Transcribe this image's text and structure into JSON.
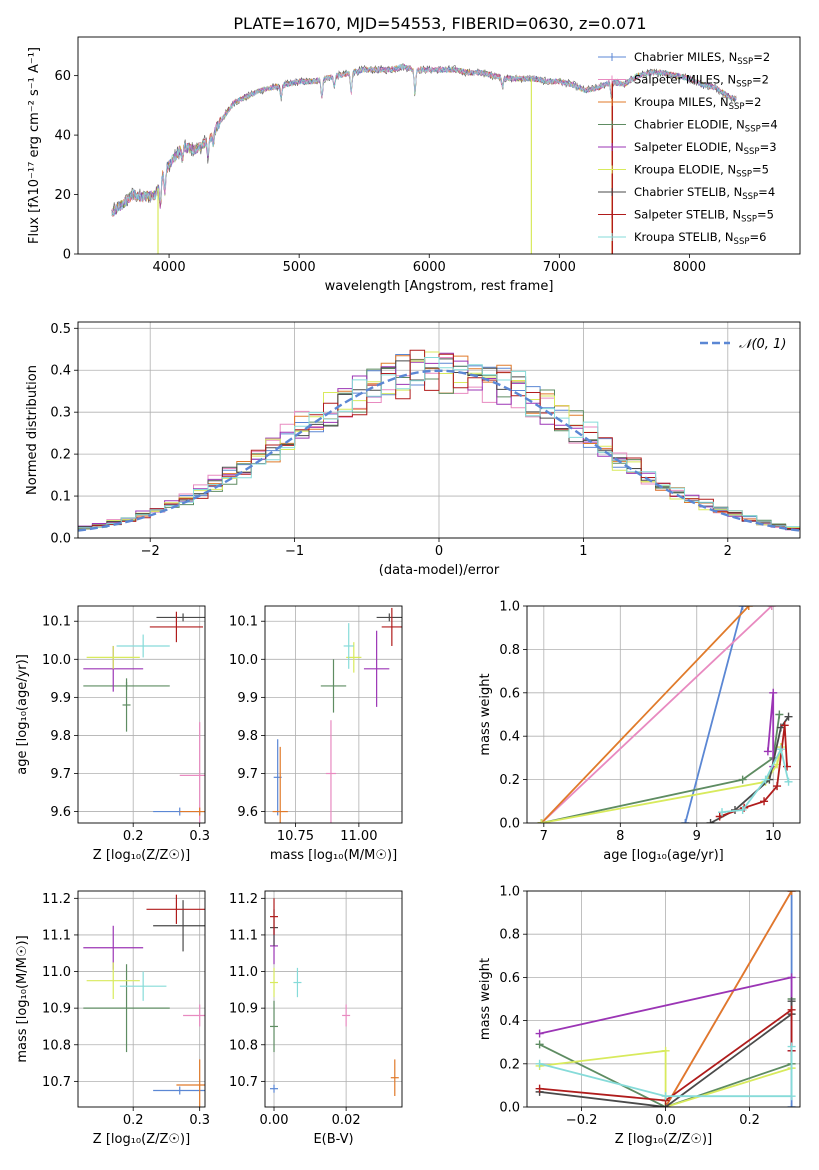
{
  "figure": {
    "title": "PLATE=1670, MJD=54553, FIBERID=0630, z=0.071",
    "colors": {
      "Chabrier MILES": "#5b87d4",
      "Salpeter MILES": "#e88ac0",
      "Kroupa MILES": "#e07a2a",
      "Chabrier ELODIE": "#5e8c62",
      "Salpeter ELODIE": "#9b35b5",
      "Kroupa ELODIE": "#d8ea5c",
      "Chabrier STELIB": "#4a4a4a",
      "Salpeter STELIB": "#b01c1c",
      "Kroupa STELIB": "#86dbd9"
    }
  },
  "chart_data": [
    {
      "type": "line",
      "id": "spectrum",
      "xlabel": "wavelength [Angstrom, rest frame]",
      "ylabel": "Flux [fλ10⁻¹⁷ erg cm⁻² s⁻¹ A⁻¹]",
      "xlim": [
        3300,
        8850
      ],
      "ylim": [
        0,
        73
      ],
      "xticks": [
        4000,
        5000,
        6000,
        7000,
        8000
      ],
      "yticks": [
        0,
        20,
        40,
        60
      ],
      "legend_position": "upper-right",
      "legend": [
        {
          "name": "Chabrier MILES",
          "nssp": "2"
        },
        {
          "name": "Salpeter MILES",
          "nssp": "2"
        },
        {
          "name": "Kroupa MILES",
          "nssp": "2"
        },
        {
          "name": "Chabrier ELODIE",
          "nssp": "4"
        },
        {
          "name": "Salpeter ELODIE",
          "nssp": "3"
        },
        {
          "name": "Kroupa ELODIE",
          "nssp": "5"
        },
        {
          "name": "Chabrier STELIB",
          "nssp": "4"
        },
        {
          "name": "Salpeter STELIB",
          "nssp": "5"
        },
        {
          "name": "Kroupa STELIB",
          "nssp": "6"
        }
      ],
      "continuum": [
        [
          3560,
          14
        ],
        [
          3650,
          17
        ],
        [
          3720,
          20
        ],
        [
          3800,
          19
        ],
        [
          3900,
          20
        ],
        [
          3950,
          27
        ],
        [
          4000,
          30
        ],
        [
          4100,
          36
        ],
        [
          4200,
          35
        ],
        [
          4300,
          38
        ],
        [
          4400,
          45
        ],
        [
          4500,
          51
        ],
        [
          4600,
          53
        ],
        [
          4700,
          55
        ],
        [
          4800,
          56
        ],
        [
          4900,
          57
        ],
        [
          5000,
          58
        ],
        [
          5100,
          58
        ],
        [
          5200,
          59
        ],
        [
          5300,
          60
        ],
        [
          5400,
          61
        ],
        [
          5500,
          62
        ],
        [
          5600,
          62
        ],
        [
          5700,
          62
        ],
        [
          5800,
          63
        ],
        [
          5900,
          62
        ],
        [
          6000,
          62
        ],
        [
          6100,
          62
        ],
        [
          6200,
          62
        ],
        [
          6300,
          61
        ],
        [
          6400,
          61
        ],
        [
          6500,
          60
        ],
        [
          6600,
          59
        ],
        [
          6700,
          59
        ],
        [
          6800,
          59
        ],
        [
          6900,
          58
        ],
        [
          7000,
          58
        ],
        [
          7100,
          57
        ],
        [
          7200,
          55
        ],
        [
          7300,
          56
        ],
        [
          7400,
          58
        ],
        [
          7500,
          57
        ],
        [
          7600,
          60
        ],
        [
          7700,
          61
        ],
        [
          7800,
          61
        ],
        [
          7900,
          60
        ],
        [
          8000,
          59
        ],
        [
          8100,
          57
        ],
        [
          8200,
          56
        ],
        [
          8300,
          53
        ],
        [
          8360,
          52
        ]
      ],
      "dips": [
        [
          3933,
          8
        ],
        [
          3968,
          7
        ],
        [
          4101,
          4
        ],
        [
          4300,
          5
        ],
        [
          4340,
          4
        ],
        [
          4861,
          4
        ],
        [
          5175,
          6
        ],
        [
          5270,
          3
        ],
        [
          5400,
          7
        ],
        [
          5890,
          8
        ],
        [
          6563,
          3
        ],
        [
          7400,
          5
        ]
      ]
    },
    {
      "type": "line",
      "id": "residuals",
      "xlabel": "(data-model)/error",
      "ylabel": "Normed distribution",
      "xlim": [
        -2.5,
        2.5
      ],
      "ylim": [
        0,
        0.515
      ],
      "xticks": [
        -2,
        -1,
        0,
        1,
        2
      ],
      "xtick_labels": [
        "−2",
        "−1",
        "0",
        "1",
        "2"
      ],
      "yticks": [
        0.0,
        0.1,
        0.2,
        0.3,
        0.4,
        0.5
      ],
      "ytick_labels": [
        "0.0",
        "0.1",
        "0.2",
        "0.3",
        "0.4",
        "0.5"
      ],
      "grid": true,
      "gaussian_label": "𝒩(0, 1)",
      "legend_position": "upper-right"
    },
    {
      "type": "scatter",
      "id": "age-vs-Z",
      "xlabel": "Z [log₁₀(Z/Z☉)]",
      "ylabel": "age  [log₁₀(age/yr)]",
      "xlim": [
        0.117,
        0.308
      ],
      "ylim": [
        9.57,
        10.14
      ],
      "xticks": [
        0.2,
        0.3
      ],
      "xtick_labels": [
        "0.2",
        "0.3"
      ],
      "yticks": [
        9.6,
        9.7,
        9.8,
        9.9,
        10.0,
        10.1
      ],
      "ytick_labels": [
        "9.6",
        "9.7",
        "9.8",
        "9.9",
        "10.0",
        "10.1"
      ],
      "grid": true,
      "points": [
        {
          "model": "Chabrier MILES",
          "x": 0.27,
          "y": 9.6,
          "xerr": 0.04,
          "yerr": 0.0
        },
        {
          "model": "Salpeter MILES",
          "x": 0.3,
          "y": 9.695,
          "xerr": 0.03,
          "yerr": 0.14
        },
        {
          "model": "Kroupa MILES",
          "x": 0.3,
          "y": 9.6,
          "xerr": 0.03,
          "yerr": 0.0
        },
        {
          "model": "Chabrier ELODIE",
          "x": 0.19,
          "y": 9.93,
          "xerr": 0.065,
          "yerr": 0.0
        },
        {
          "model": "Salpeter ELODIE",
          "x": 0.17,
          "y": 9.975,
          "xerr": 0.045,
          "yerr": 0.06
        },
        {
          "model": "Kroupa ELODIE",
          "x": 0.17,
          "y": 10.005,
          "xerr": 0.04,
          "yerr": 0.03
        },
        {
          "model": "Chabrier STELIB",
          "x": 0.275,
          "y": 10.11,
          "xerr": 0.04,
          "yerr": 0.0
        },
        {
          "model": "Chabrier ELODIE",
          "x": 0.19,
          "y": 9.88,
          "xerr": 0.0,
          "yerr": 0.07
        },
        {
          "model": "Salpeter STELIB",
          "x": 0.265,
          "y": 10.085,
          "xerr": 0.04,
          "yerr": 0.04
        },
        {
          "model": "Kroupa STELIB",
          "x": 0.215,
          "y": 10.035,
          "xerr": 0.04,
          "yerr": 0.03
        }
      ]
    },
    {
      "type": "scatter",
      "id": "age-vs-mass",
      "xlabel": "mass [log₁₀(M/M☉)]",
      "ylabel": "",
      "xlim": [
        10.63,
        11.17
      ],
      "ylim": [
        9.57,
        10.14
      ],
      "xticks": [
        10.75,
        11.0
      ],
      "xtick_labels": [
        "10.75",
        "11.00"
      ],
      "yticks": [
        9.6,
        9.7,
        9.8,
        9.9,
        10.0,
        10.1
      ],
      "ytick_labels": [
        "9.6",
        "9.7",
        "9.8",
        "9.9",
        "10.0",
        "10.1"
      ],
      "grid": true,
      "points": [
        {
          "model": "Chabrier MILES",
          "x": 10.68,
          "y": 9.69,
          "xerr": 0.0,
          "yerr": 0.1
        },
        {
          "model": "Salpeter MILES",
          "x": 10.89,
          "y": 9.7,
          "xerr": 0.02,
          "yerr": 0.14
        },
        {
          "model": "Kroupa MILES",
          "x": 10.69,
          "y": 9.6,
          "xerr": 0.03,
          "yerr": 0.17
        },
        {
          "model": "Chabrier ELODIE",
          "x": 10.9,
          "y": 9.93,
          "xerr": 0.05,
          "yerr": 0.07
        },
        {
          "model": "Salpeter ELODIE",
          "x": 11.07,
          "y": 9.975,
          "xerr": 0.05,
          "yerr": 0.1
        },
        {
          "model": "Kroupa ELODIE",
          "x": 10.98,
          "y": 10.005,
          "xerr": 0.03,
          "yerr": 0.04
        },
        {
          "model": "Chabrier STELIB",
          "x": 11.12,
          "y": 10.11,
          "xerr": 0.05,
          "yerr": 0.0
        },
        {
          "model": "Salpeter STELIB",
          "x": 11.13,
          "y": 10.085,
          "xerr": 0.04,
          "yerr": 0.05
        },
        {
          "model": "Kroupa STELIB",
          "x": 10.96,
          "y": 10.035,
          "xerr": 0.02,
          "yerr": 0.06
        }
      ]
    },
    {
      "type": "line",
      "id": "mass-weight-vs-age",
      "xlabel": "age  [log₁₀(age/yr)]",
      "ylabel": "mass weight",
      "xlim": [
        6.78,
        10.35
      ],
      "ylim": [
        0,
        1
      ],
      "xticks": [
        7,
        8,
        9,
        10
      ],
      "xtick_labels": [
        "7",
        "8",
        "9",
        "10"
      ],
      "yticks": [
        0.0,
        0.2,
        0.4,
        0.6,
        0.8,
        1.0
      ],
      "ytick_labels": [
        "0.0",
        "0.2",
        "0.4",
        "0.6",
        "0.8",
        "1.0"
      ],
      "grid": true,
      "series": [
        {
          "model": "Chabrier MILES",
          "x": [
            8.85,
            9.6
          ],
          "y": [
            0.0,
            1.0
          ]
        },
        {
          "model": "Salpeter MILES",
          "x": [
            6.97,
            9.98
          ],
          "y": [
            0.0,
            1.0
          ]
        },
        {
          "model": "Kroupa MILES",
          "x": [
            6.97,
            9.68
          ],
          "y": [
            0.0,
            1.0
          ]
        },
        {
          "model": "Chabrier ELODIE",
          "x": [
            6.97,
            9.6,
            10.0,
            10.08
          ],
          "y": [
            0.0,
            0.2,
            0.3,
            0.5
          ]
        },
        {
          "model": "Salpeter ELODIE",
          "x": [
            9.93,
            10.0,
            10.0
          ],
          "y": [
            0.33,
            0.6,
            0.26
          ]
        },
        {
          "model": "Kroupa ELODIE",
          "x": [
            6.97,
            9.9,
            10.05,
            10.1
          ],
          "y": [
            0.0,
            0.19,
            0.27,
            0.35
          ]
        },
        {
          "model": "Chabrier STELIB",
          "x": [
            9.18,
            9.5,
            9.95,
            10.1,
            10.2
          ],
          "y": [
            0.0,
            0.06,
            0.2,
            0.44,
            0.49
          ]
        },
        {
          "model": "Salpeter STELIB",
          "x": [
            9.3,
            9.62,
            9.88,
            10.05,
            10.15,
            10.18
          ],
          "y": [
            0.03,
            0.07,
            0.1,
            0.17,
            0.45,
            0.26
          ]
        },
        {
          "model": "Kroupa STELIB",
          "x": [
            9.33,
            9.6,
            9.9,
            10.1,
            10.2
          ],
          "y": [
            0.05,
            0.06,
            0.2,
            0.34,
            0.19
          ]
        }
      ]
    },
    {
      "type": "scatter",
      "id": "mass-vs-Z",
      "xlabel": "Z [log₁₀(Z/Z☉)]",
      "ylabel": "mass [log₁₀(M/M☉)]",
      "xlim": [
        0.117,
        0.308
      ],
      "ylim": [
        10.63,
        11.22
      ],
      "xticks": [
        0.2,
        0.3
      ],
      "xtick_labels": [
        "0.2",
        "0.3"
      ],
      "yticks": [
        10.7,
        10.8,
        10.9,
        11.0,
        11.1,
        11.2
      ],
      "ytick_labels": [
        "10.7",
        "10.8",
        "10.9",
        "11.0",
        "11.1",
        "11.2"
      ],
      "grid": true,
      "points": [
        {
          "model": "Chabrier MILES",
          "x": 0.27,
          "y": 10.675,
          "xerr": 0.04,
          "yerr": 0.0
        },
        {
          "model": "Salpeter MILES",
          "x": 0.3,
          "y": 10.88,
          "xerr": 0.025,
          "yerr": 0.03
        },
        {
          "model": "Kroupa MILES",
          "x": 0.3,
          "y": 10.69,
          "xerr": 0.035,
          "yerr": 0.07
        },
        {
          "model": "Chabrier ELODIE",
          "x": 0.19,
          "y": 10.9,
          "xerr": 0.065,
          "yerr": 0.12
        },
        {
          "model": "Salpeter ELODIE",
          "x": 0.17,
          "y": 11.065,
          "xerr": 0.045,
          "yerr": 0.06
        },
        {
          "model": "Kroupa ELODIE",
          "x": 0.17,
          "y": 10.975,
          "xerr": 0.04,
          "yerr": 0.05
        },
        {
          "model": "Chabrier STELIB",
          "x": 0.275,
          "y": 11.125,
          "xerr": 0.045,
          "yerr": 0.07
        },
        {
          "model": "Salpeter STELIB",
          "x": 0.265,
          "y": 11.17,
          "xerr": 0.045,
          "yerr": 0.04
        },
        {
          "model": "Kroupa STELIB",
          "x": 0.215,
          "y": 10.96,
          "xerr": 0.035,
          "yerr": 0.04
        }
      ]
    },
    {
      "type": "scatter",
      "id": "mass-vs-ebv",
      "xlabel": "E(B-V)",
      "ylabel": "",
      "xlim": [
        -0.0025,
        0.0355
      ],
      "ylim": [
        10.63,
        11.22
      ],
      "xticks": [
        0.0,
        0.02
      ],
      "xtick_labels": [
        "0.00",
        "0.02"
      ],
      "yticks": [
        10.7,
        10.8,
        10.9,
        11.0,
        11.1,
        11.2
      ],
      "ytick_labels": [
        "10.7",
        "10.8",
        "10.9",
        "11.0",
        "11.1",
        "11.2"
      ],
      "grid": true,
      "points": [
        {
          "model": "Chabrier MILES",
          "x": 0.0,
          "y": 10.68,
          "xerr": 0.0,
          "yerr": 0.0
        },
        {
          "model": "Salpeter MILES",
          "x": 0.02,
          "y": 10.88,
          "xerr": 0.0,
          "yerr": 0.03
        },
        {
          "model": "Kroupa MILES",
          "x": 0.0335,
          "y": 10.71,
          "xerr": 0.0,
          "yerr": 0.05
        },
        {
          "model": "Chabrier ELODIE",
          "x": 0.0,
          "y": 10.85,
          "xerr": 0.0,
          "yerr": 0.07
        },
        {
          "model": "Salpeter ELODIE",
          "x": 0.0,
          "y": 11.07,
          "xerr": 0.0,
          "yerr": 0.05
        },
        {
          "model": "Kroupa ELODIE",
          "x": 0.0,
          "y": 10.97,
          "xerr": 0.0,
          "yerr": 0.04
        },
        {
          "model": "Chabrier STELIB",
          "x": 0.0,
          "y": 11.12,
          "xerr": 0.0,
          "yerr": 0.05
        },
        {
          "model": "Salpeter STELIB",
          "x": 0.0,
          "y": 11.15,
          "xerr": 0.0,
          "yerr": 0.05
        },
        {
          "model": "Kroupa STELIB",
          "x": 0.0065,
          "y": 10.97,
          "xerr": 0.0,
          "yerr": 0.04
        }
      ]
    },
    {
      "type": "line",
      "id": "mass-weight-vs-Z",
      "xlabel": "Z [log₁₀(Z/Z☉)]",
      "ylabel": "mass weight",
      "xlim": [
        -0.33,
        0.32
      ],
      "ylim": [
        0,
        1
      ],
      "xticks": [
        -0.2,
        0.0,
        0.2
      ],
      "xtick_labels": [
        "−0.2",
        "0.0",
        "0.2"
      ],
      "yticks": [
        0.0,
        0.2,
        0.4,
        0.6,
        0.8,
        1.0
      ],
      "ytick_labels": [
        "0.0",
        "0.2",
        "0.4",
        "0.6",
        "0.8",
        "1.0"
      ],
      "grid": true,
      "series": [
        {
          "model": "Chabrier MILES",
          "x": [
            0.3,
            0.3
          ],
          "y": [
            0.0,
            1.0
          ]
        },
        {
          "model": "Salpeter MILES",
          "x": [
            0.0,
            0.3
          ],
          "y": [
            0.0,
            1.0
          ]
        },
        {
          "model": "Kroupa MILES",
          "x": [
            0.0,
            0.3
          ],
          "y": [
            0.0,
            1.0
          ]
        },
        {
          "model": "Chabrier ELODIE",
          "x": [
            -0.3,
            0.0,
            0.3,
            0.3
          ],
          "y": [
            0.29,
            0.0,
            0.2,
            0.5
          ]
        },
        {
          "model": "Salpeter ELODIE",
          "x": [
            -0.3,
            0.3,
            0.3
          ],
          "y": [
            0.34,
            0.6,
            0.26
          ]
        },
        {
          "model": "Kroupa ELODIE",
          "x": [
            -0.3,
            0.0,
            0.0,
            0.3
          ],
          "y": [
            0.19,
            0.26,
            0.0,
            0.18
          ]
        },
        {
          "model": "Chabrier STELIB",
          "x": [
            -0.3,
            0.0,
            0.3,
            0.3
          ],
          "y": [
            0.07,
            0.0,
            0.43,
            0.49
          ]
        },
        {
          "model": "Salpeter STELIB",
          "x": [
            -0.3,
            0.0,
            0.3,
            0.3
          ],
          "y": [
            0.085,
            0.03,
            0.45,
            0.26
          ]
        },
        {
          "model": "Kroupa STELIB",
          "x": [
            -0.3,
            0.0,
            0.3,
            0.3
          ],
          "y": [
            0.2,
            0.05,
            0.05,
            0.28
          ]
        }
      ]
    }
  ]
}
